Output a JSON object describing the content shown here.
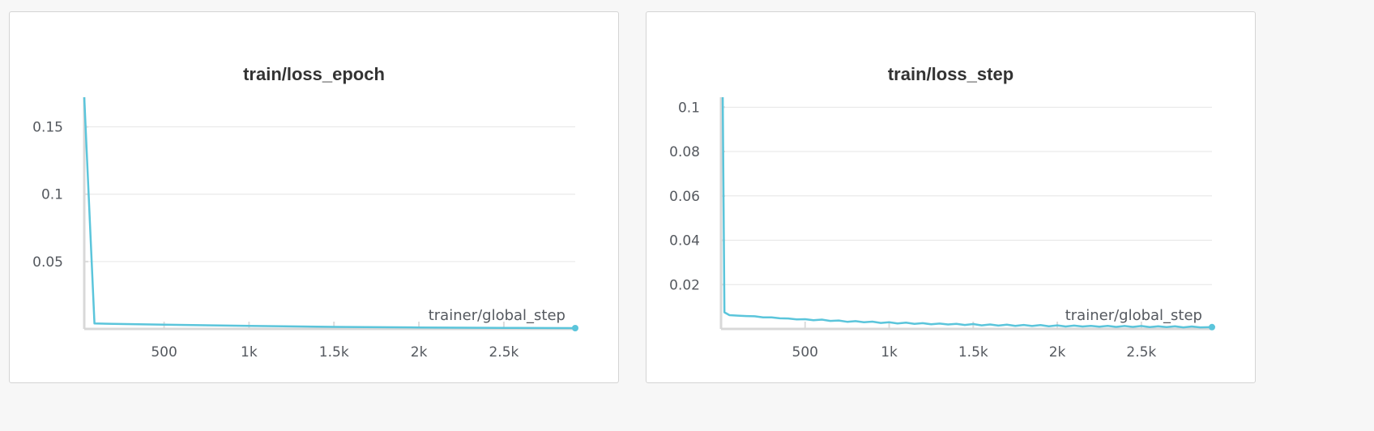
{
  "chart_data": [
    {
      "type": "line",
      "title": "train/loss_epoch",
      "xlabel": "trainer/global_step",
      "ylabel": "",
      "xlim": [
        30,
        2920
      ],
      "ylim": [
        0,
        0.172
      ],
      "x_ticks": [
        500,
        1000,
        1500,
        2000,
        2500
      ],
      "x_tick_labels": [
        "500",
        "1k",
        "1.5k",
        "2k",
        "2.5k"
      ],
      "y_ticks": [
        0.05,
        0.1,
        0.15
      ],
      "y_tick_labels": [
        "0.05",
        "0.1",
        "0.15"
      ],
      "grid": true,
      "color": "#5bc5db",
      "series": [
        {
          "x": [
            30,
            90,
            200,
            500,
            1000,
            1500,
            2000,
            2500,
            2920
          ],
          "y": [
            0.172,
            0.004,
            0.0037,
            0.0031,
            0.0022,
            0.0015,
            0.0011,
            0.0008,
            0.0006
          ]
        }
      ]
    },
    {
      "type": "line",
      "title": "train/loss_step",
      "xlabel": "trainer/global_step",
      "ylabel": "",
      "xlim": [
        0,
        2920
      ],
      "ylim": [
        0,
        0.1045
      ],
      "x_ticks": [
        500,
        1000,
        1500,
        2000,
        2500
      ],
      "x_tick_labels": [
        "500",
        "1k",
        "1.5k",
        "2k",
        "2.5k"
      ],
      "y_ticks": [
        0.02,
        0.04,
        0.06,
        0.08,
        0.1
      ],
      "y_tick_labels": [
        "0.02",
        "0.04",
        "0.06",
        "0.08",
        "0.1"
      ],
      "grid": true,
      "color": "#5bc5db",
      "series": [
        {
          "x": [
            10,
            20,
            50,
            100,
            150,
            200,
            250,
            300,
            350,
            400,
            450,
            500,
            550,
            600,
            650,
            700,
            750,
            800,
            850,
            900,
            950,
            1000,
            1050,
            1100,
            1150,
            1200,
            1250,
            1300,
            1350,
            1400,
            1450,
            1500,
            1550,
            1600,
            1650,
            1700,
            1750,
            1800,
            1850,
            1900,
            1950,
            2000,
            2050,
            2100,
            2150,
            2200,
            2250,
            2300,
            2350,
            2400,
            2450,
            2500,
            2550,
            2600,
            2650,
            2700,
            2750,
            2800,
            2850,
            2920
          ],
          "y": [
            0.1045,
            0.0075,
            0.0062,
            0.006,
            0.0058,
            0.0057,
            0.0052,
            0.0052,
            0.0048,
            0.0047,
            0.0043,
            0.0044,
            0.0039,
            0.0042,
            0.0036,
            0.0038,
            0.0032,
            0.0035,
            0.003,
            0.0033,
            0.0027,
            0.003,
            0.0025,
            0.0028,
            0.0023,
            0.0026,
            0.0021,
            0.0024,
            0.002,
            0.0023,
            0.0018,
            0.0022,
            0.0016,
            0.002,
            0.0015,
            0.0019,
            0.0014,
            0.0018,
            0.0013,
            0.0017,
            0.0012,
            0.0016,
            0.0011,
            0.0015,
            0.0011,
            0.0014,
            0.001,
            0.0014,
            0.0009,
            0.0013,
            0.0009,
            0.0013,
            0.0008,
            0.0012,
            0.0008,
            0.0012,
            0.0007,
            0.0011,
            0.0007,
            0.0008
          ]
        }
      ]
    }
  ]
}
